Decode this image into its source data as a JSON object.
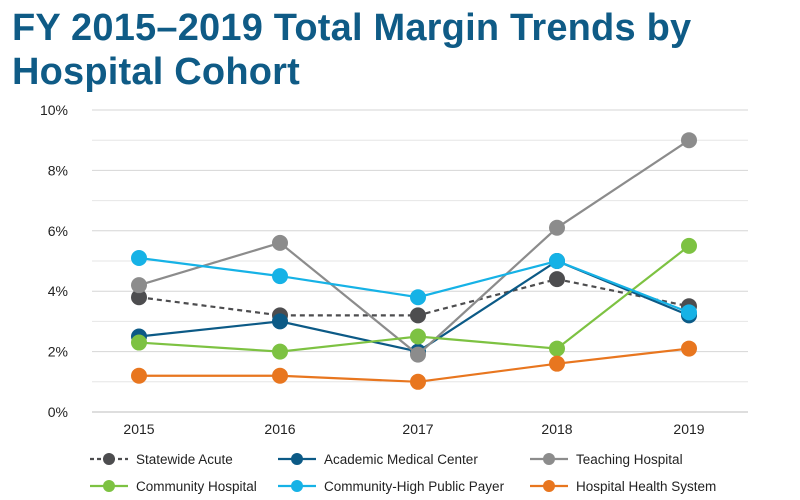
{
  "chart_data": {
    "type": "line",
    "title": "FY 2015–2019 Total Margin Trends by Hospital Cohort",
    "xlabel": "",
    "ylabel": "",
    "categories": [
      "2015",
      "2016",
      "2017",
      "2018",
      "2019"
    ],
    "ylim": [
      0,
      10
    ],
    "yticks": [
      0,
      2,
      4,
      6,
      8,
      10
    ],
    "ytick_labels": [
      "0%",
      "2%",
      "4%",
      "6%",
      "8%",
      "10%"
    ],
    "grid": true,
    "legend_position": "bottom",
    "series": [
      {
        "name": "Statewide Acute",
        "color": "#4d4d4f",
        "dashed": true,
        "values": [
          3.8,
          3.2,
          3.2,
          4.4,
          3.5
        ]
      },
      {
        "name": "Academic Medical Center",
        "color": "#0c5a86",
        "dashed": false,
        "values": [
          2.5,
          3.0,
          2.0,
          5.0,
          3.2
        ]
      },
      {
        "name": "Teaching Hospital",
        "color": "#8c8c8c",
        "dashed": false,
        "values": [
          4.2,
          5.6,
          1.9,
          6.1,
          9.0
        ]
      },
      {
        "name": "Community Hospital",
        "color": "#7dc242",
        "dashed": false,
        "values": [
          2.3,
          2.0,
          2.5,
          2.1,
          5.5
        ]
      },
      {
        "name": "Community-High Public Payer",
        "color": "#16b2e6",
        "dashed": false,
        "values": [
          5.1,
          4.5,
          3.8,
          5.0,
          3.3
        ]
      },
      {
        "name": "Hospital Health System",
        "color": "#e8761f",
        "dashed": false,
        "values": [
          1.2,
          1.2,
          1.0,
          1.6,
          2.1
        ]
      }
    ]
  }
}
